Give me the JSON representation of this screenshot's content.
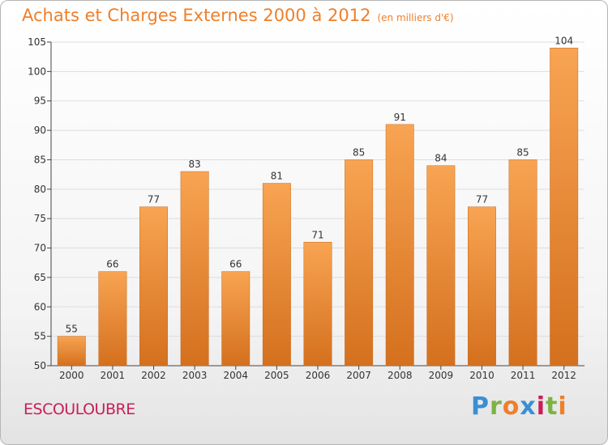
{
  "header": {
    "title": "Achats et Charges Externes 2000 à 2012",
    "unit": "(en milliers d'€)"
  },
  "footer": {
    "commune": "ESCOULOUBRE",
    "logo_text": "Proxiti",
    "logo_colors": [
      "#3a8fd4",
      "#7cb342",
      "#ef7f2a",
      "#3a8fd4",
      "#c81e5a",
      "#7cb342",
      "#ef7f2a"
    ]
  },
  "colors": {
    "bar_top": "#f8a452",
    "bar_bottom": "#d4701e",
    "grid": "#dddddd",
    "axis": "#444444",
    "title": "#ef7f2a"
  },
  "chart_data": {
    "type": "bar",
    "title": "Achats et Charges Externes 2000 à 2012",
    "subtitle": "(en milliers d'€)",
    "xlabel": "",
    "ylabel": "",
    "categories": [
      "2000",
      "2001",
      "2002",
      "2003",
      "2004",
      "2005",
      "2006",
      "2007",
      "2008",
      "2009",
      "2010",
      "2011",
      "2012"
    ],
    "values": [
      55,
      66,
      77,
      83,
      66,
      81,
      71,
      85,
      91,
      84,
      77,
      85,
      104
    ],
    "ylim": [
      50,
      105
    ],
    "yticks": [
      50,
      55,
      60,
      65,
      70,
      75,
      80,
      85,
      90,
      95,
      100,
      105
    ],
    "grid": true,
    "data_labels": true
  }
}
